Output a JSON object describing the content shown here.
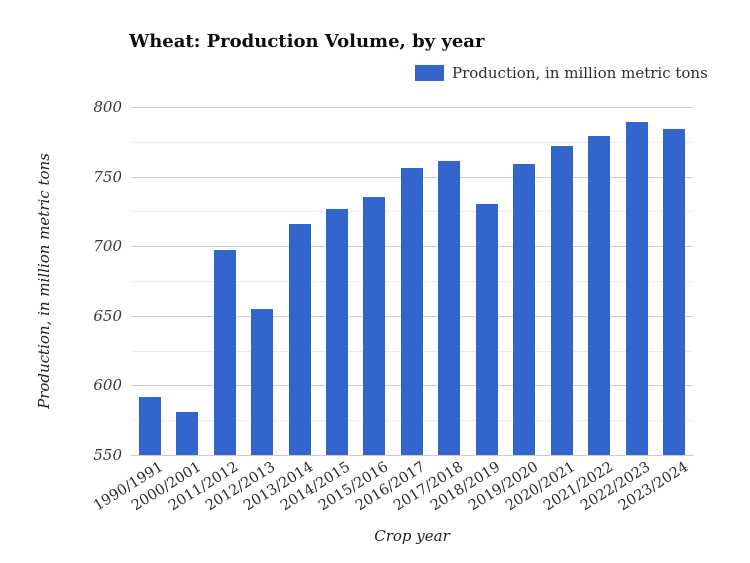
{
  "chart": {
    "title": "Wheat: Production Volume, by year",
    "legend": {
      "label": "Production, in million metric tons",
      "swatch_color": "#3366CC",
      "position": "top-right"
    },
    "y_axis": {
      "title": "Production, in million metric tons",
      "tick_labels": [
        "800",
        "750",
        "700",
        "650",
        "600",
        "550"
      ]
    },
    "x_axis": {
      "title": "Crop year"
    },
    "colors": {
      "bar": "#3366CC",
      "gridline_major": "#cccccc",
      "gridline_minor": "#ededed",
      "tick_text": "#383838",
      "background": "#ffffff"
    }
  },
  "chart_data": {
    "type": "bar",
    "title": "Wheat: Production Volume, by year",
    "series_name": "Production, in million metric tons",
    "categories": [
      "1990/1991",
      "2000/2001",
      "2011/2012",
      "2012/2013",
      "2013/2014",
      "2014/2015",
      "2015/2016",
      "2016/2017",
      "2017/2018",
      "2018/2019",
      "2019/2020",
      "2020/2021",
      "2021/2022",
      "2022/2023",
      "2023/2024"
    ],
    "values": [
      592,
      581,
      697,
      655,
      716,
      727,
      735,
      756,
      761,
      730,
      759,
      772,
      779,
      789,
      784
    ],
    "xlabel": "Crop year",
    "ylabel": "Production, in million metric tons",
    "ylim": [
      550,
      800
    ],
    "y_major_ticks": [
      550,
      600,
      650,
      700,
      750,
      800
    ],
    "y_minor_ticks": [
      575,
      625,
      675,
      725,
      775
    ],
    "grid": true,
    "legend_position": "top-right",
    "bar_color": "#3366CC"
  }
}
